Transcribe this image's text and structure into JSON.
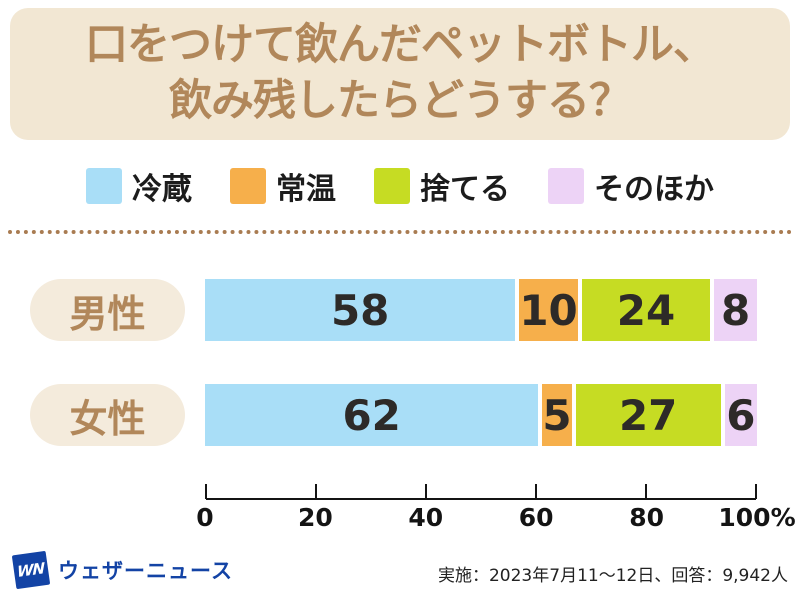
{
  "title": {
    "line1": "口をつけて飲んだペットボトル、",
    "line2": "飲み残したらどうする？"
  },
  "chart_data": {
    "type": "bar",
    "stacked": true,
    "orientation": "horizontal",
    "title": "口をつけて飲んだペットボトル、飲み残したらどうする？",
    "categories": [
      "男性",
      "女性"
    ],
    "series": [
      {
        "name": "冷蔵",
        "color": "#A9DEF7",
        "values": [
          58,
          62
        ]
      },
      {
        "name": "常温",
        "color": "#F6AF4B",
        "values": [
          10,
          5
        ]
      },
      {
        "name": "捨てる",
        "color": "#C6DC23",
        "values": [
          24,
          27
        ]
      },
      {
        "name": "そのほか",
        "color": "#EDD3F6",
        "values": [
          8,
          6
        ]
      }
    ],
    "unit": "%",
    "xlim": [
      0,
      100
    ],
    "x_ticks": [
      "0",
      "20",
      "40",
      "60",
      "80",
      "100%"
    ],
    "legend_position": "top",
    "grid": false
  },
  "footer": {
    "logo_mark": "WN",
    "logo_text": "ウェザーニュース",
    "survey_info": "実施：2023年7月11〜12日、回答：9,942人"
  },
  "colors": {
    "title_bg": "#F2E7D3",
    "title_text": "#B1875A",
    "pill_bg": "#F4EBDC",
    "pill_text": "#B1875A",
    "divider_dot": "#A97C52",
    "bar_value_text": "#2D2A28",
    "axis_line": "#141414",
    "logo_blue": "#1343A5"
  }
}
